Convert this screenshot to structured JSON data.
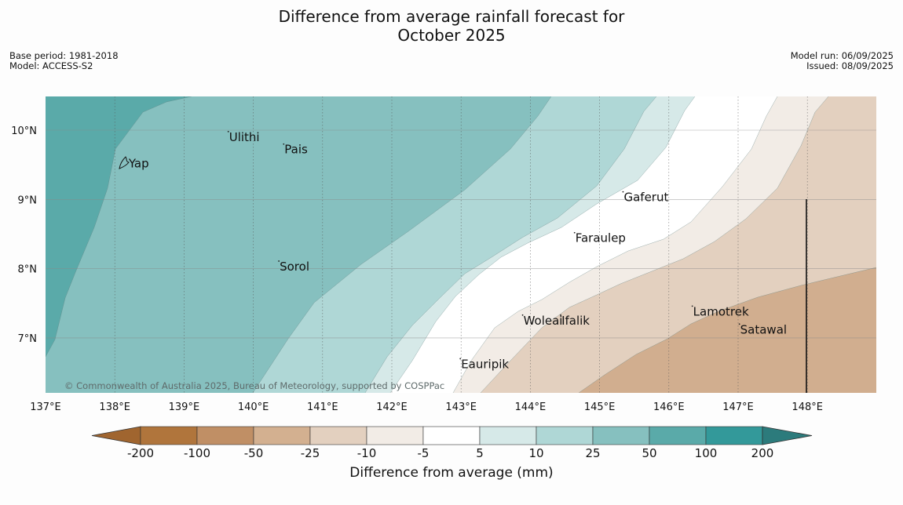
{
  "title_line1": "Difference from average rainfall forecast for",
  "title_line2": "October 2025",
  "base_period": "Base period: 1981-2018",
  "model": "Model: ACCESS-S2",
  "model_run": "Model run: 06/09/2025",
  "issued": "Issued: 08/09/2025",
  "copyright": "© Commonwealth of Australia 2025, Bureau of Meteorology, supported by COSPPac",
  "map": {
    "lon_labels": [
      "137°E",
      "138°E",
      "139°E",
      "140°E",
      "141°E",
      "142°E",
      "143°E",
      "144°E",
      "145°E",
      "146°E",
      "147°E",
      "148°E"
    ],
    "lat_labels": [
      "10°N",
      "9°N",
      "8°N",
      "7°N"
    ],
    "places": [
      {
        "name": "Yap",
        "lon": 138.2,
        "lat": 9.52
      },
      {
        "name": "Ulithi",
        "lon": 139.65,
        "lat": 9.9
      },
      {
        "name": "Pais",
        "lon": 140.45,
        "lat": 9.72
      },
      {
        "name": "Gaferut",
        "lon": 145.35,
        "lat": 9.03
      },
      {
        "name": "Faraulep",
        "lon": 144.65,
        "lat": 8.44
      },
      {
        "name": "Sorol",
        "lon": 140.38,
        "lat": 8.03
      },
      {
        "name": "Woleai",
        "lon": 143.9,
        "lat": 7.25
      },
      {
        "name": "Ifalik",
        "lon": 144.45,
        "lat": 7.25
      },
      {
        "name": "Lamotrek",
        "lon": 146.35,
        "lat": 7.38
      },
      {
        "name": "Satawal",
        "lon": 147.03,
        "lat": 7.12
      },
      {
        "name": "Eauripik",
        "lon": 143.0,
        "lat": 6.62
      }
    ]
  },
  "colorbar": {
    "labels": [
      "-200",
      "-100",
      "-50",
      "-25",
      "-10",
      "-5",
      "5",
      "10",
      "25",
      "50",
      "100",
      "200"
    ],
    "colors": [
      "#a0652f",
      "#b0753c",
      "#c08f65",
      "#d3b090",
      "#e3d0bf",
      "#f2ece6",
      "#ffffff",
      "#d6e9e8",
      "#afd7d6",
      "#86c0bf",
      "#5aaaa9",
      "#33999a",
      "#2c7b7c"
    ],
    "title": "Difference from average (mm)"
  }
}
